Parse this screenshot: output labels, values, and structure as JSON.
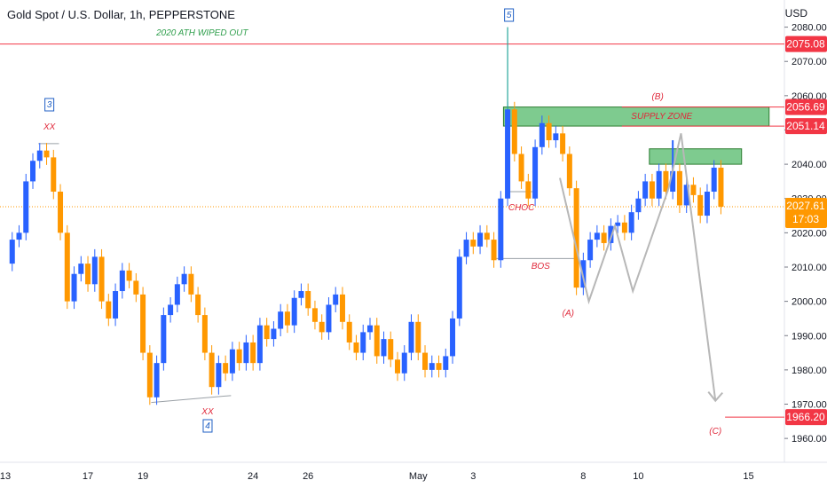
{
  "header": {
    "symbol_line": "Gold Spot / U.S. Dollar, 1h, PEPPERSTONE",
    "currency": "USD"
  },
  "chart_data": {
    "type": "candlestick",
    "title": "Gold Spot / U.S. Dollar, 1h, PEPPERSTONE",
    "ylabel": "USD",
    "ylim": [
      1955,
      2085
    ],
    "y_ticks": [
      "2080.00",
      "2070.00",
      "2060.00",
      "2050.00",
      "2040.00",
      "2030.00",
      "2020.00",
      "2010.00",
      "2000.00",
      "1990.00",
      "1980.00",
      "1970.00",
      "1960.00"
    ],
    "x_ticks": [
      "13",
      "17",
      "19",
      "24",
      "26",
      "May",
      "3",
      "8",
      "10",
      "15"
    ],
    "x_tick_positions_index": [
      0,
      6,
      10,
      18,
      22,
      30,
      34,
      42,
      46,
      54
    ],
    "candles_close_path": [
      [
        0,
        2011
      ],
      [
        0.5,
        2018
      ],
      [
        1,
        2020
      ],
      [
        1.5,
        2035
      ],
      [
        2,
        2041
      ],
      [
        2.5,
        2044
      ],
      [
        3,
        2042
      ],
      [
        3.5,
        2032
      ],
      [
        4,
        2020
      ],
      [
        4.5,
        2000
      ],
      [
        5,
        2008
      ],
      [
        5.5,
        2011
      ],
      [
        6,
        2005
      ],
      [
        6.5,
        2013
      ],
      [
        7,
        2000
      ],
      [
        7.5,
        1995
      ],
      [
        8,
        2003
      ],
      [
        8.5,
        2009
      ],
      [
        9,
        2006
      ],
      [
        9.5,
        2002
      ],
      [
        10,
        1985
      ],
      [
        10.5,
        1972
      ],
      [
        11,
        1982
      ],
      [
        11.5,
        1996
      ],
      [
        12,
        1999
      ],
      [
        12.5,
        2005
      ],
      [
        13,
        2008
      ],
      [
        13.5,
        2002
      ],
      [
        14,
        1996
      ],
      [
        14.5,
        1985
      ],
      [
        15,
        1975
      ],
      [
        15.5,
        1982
      ],
      [
        16,
        1979
      ],
      [
        16.5,
        1986
      ],
      [
        17,
        1982
      ],
      [
        17.5,
        1988
      ],
      [
        18,
        1982
      ],
      [
        18.5,
        1993
      ],
      [
        19,
        1989
      ],
      [
        19.5,
        1992
      ],
      [
        20,
        1997
      ],
      [
        20.5,
        1993
      ],
      [
        21,
        2001
      ],
      [
        21.5,
        2003
      ],
      [
        22,
        1998
      ],
      [
        22.5,
        1994
      ],
      [
        23,
        1991
      ],
      [
        23.5,
        1999
      ],
      [
        24,
        2002
      ],
      [
        24.5,
        1994
      ],
      [
        25,
        1988
      ],
      [
        25.5,
        1985
      ],
      [
        26,
        1991
      ],
      [
        26.5,
        1993
      ],
      [
        27,
        1984
      ],
      [
        27.5,
        1989
      ],
      [
        28,
        1983
      ],
      [
        28.5,
        1979
      ],
      [
        29,
        1985
      ],
      [
        29.5,
        1994
      ],
      [
        30,
        1985
      ],
      [
        30.5,
        1980
      ],
      [
        31,
        1982
      ],
      [
        31.5,
        1980
      ],
      [
        32,
        1984
      ],
      [
        32.5,
        1995
      ],
      [
        33,
        2013
      ],
      [
        33.5,
        2018
      ],
      [
        34,
        2016
      ],
      [
        34.5,
        2020
      ],
      [
        35,
        2018
      ],
      [
        35.5,
        2012
      ],
      [
        36,
        2030
      ],
      [
        36.5,
        2056
      ],
      [
        37,
        2043
      ],
      [
        37.5,
        2035
      ],
      [
        38,
        2030
      ],
      [
        38.5,
        2045
      ],
      [
        39,
        2052
      ],
      [
        39.5,
        2047
      ],
      [
        40,
        2049
      ],
      [
        40.5,
        2043
      ],
      [
        41,
        2033
      ],
      [
        41.5,
        2004
      ],
      [
        42,
        2012
      ],
      [
        42.5,
        2018
      ],
      [
        43,
        2020
      ],
      [
        43.5,
        2017
      ],
      [
        44,
        2022
      ],
      [
        44.5,
        2023
      ],
      [
        45,
        2020
      ],
      [
        45.5,
        2026
      ],
      [
        46,
        2030
      ],
      [
        46.5,
        2035
      ],
      [
        47,
        2030
      ],
      [
        47.5,
        2038
      ],
      [
        48,
        2032
      ],
      [
        48.5,
        2038
      ],
      [
        49,
        2028
      ],
      [
        49.5,
        2034
      ],
      [
        50,
        2031
      ],
      [
        50.5,
        2025
      ],
      [
        51,
        2032
      ],
      [
        51.5,
        2039
      ],
      [
        52,
        2027.61
      ]
    ],
    "levels": [
      {
        "label": "2075.08",
        "value": 2075.08,
        "color": "#f23645"
      },
      {
        "label": "2056.69",
        "value": 2056.69,
        "color": "#f23645"
      },
      {
        "label": "2051.14",
        "value": 2051.14,
        "color": "#f23645"
      },
      {
        "label": "2027.61",
        "value": 2027.61,
        "color": "#ff9800",
        "countdown": "17:03"
      },
      {
        "label": "1966.20",
        "value": 1966.2,
        "color": "#f23645"
      }
    ],
    "zones": [
      {
        "name": "supply-zone",
        "label": "SUPPLY ZONE",
        "from_index": 36.2,
        "to_index": 55.5,
        "y_low": 2051.14,
        "y_high": 2056.69
      },
      {
        "name": "small-zone",
        "label": "",
        "from_index": 46.8,
        "to_index": 53.5,
        "y_low": 2040.0,
        "y_high": 2044.5
      }
    ],
    "annotations": [
      {
        "text": "2020 ATH WIPED OUT",
        "color": "#2e9e4b"
      },
      {
        "text": "5",
        "color": "#1f5fc4",
        "boxed": true
      },
      {
        "text": "3",
        "color": "#1f5fc4",
        "boxed": true
      },
      {
        "text": "4",
        "color": "#1f5fc4",
        "boxed": true
      },
      {
        "text": "XX",
        "color": "#e0283a"
      },
      {
        "text": "XX",
        "color": "#e0283a"
      },
      {
        "text": "CHOC",
        "color": "#e0283a"
      },
      {
        "text": "BOS",
        "color": "#e0283a"
      },
      {
        "text": "(A)",
        "color": "#e0283a"
      },
      {
        "text": "(B)",
        "color": "#e0283a"
      },
      {
        "text": "(C)",
        "color": "#e0283a"
      },
      {
        "text": "SUPPLY ZONE",
        "color": "#e0283a"
      }
    ],
    "projection_path": [
      [
        40.3,
        2036
      ],
      [
        42.4,
        2000
      ],
      [
        44.3,
        2022
      ],
      [
        45.6,
        2003
      ],
      [
        48.2,
        2033
      ],
      [
        49.1,
        2049
      ],
      [
        51.6,
        1971
      ]
    ],
    "colors": {
      "up": "#2962ff",
      "down": "#ff9800",
      "ath_line": "#f23645",
      "zone_fill": "#7ecb8f",
      "zone_border": "#2e7d32",
      "projection": "#b7b7b7",
      "current": "#ff9800"
    }
  }
}
